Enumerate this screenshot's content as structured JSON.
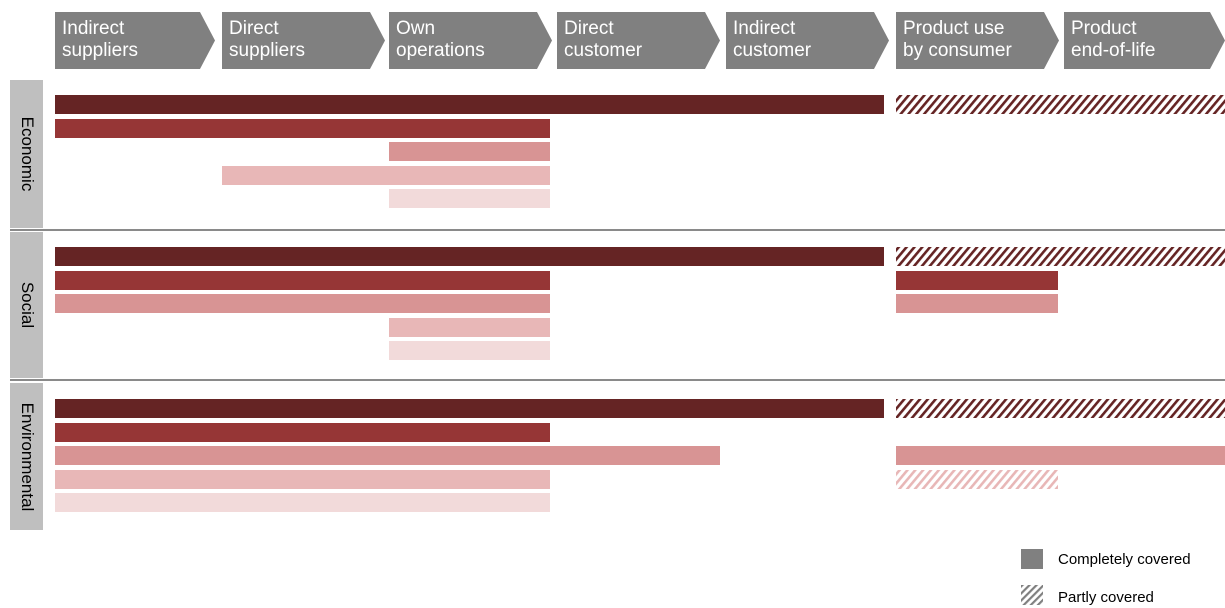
{
  "stages": [
    {
      "label": "Indirect\nsuppliers"
    },
    {
      "label": "Direct\nsuppliers"
    },
    {
      "label": "Own\noperations"
    },
    {
      "label": "Direct\ncustomer"
    },
    {
      "label": "Indirect\ncustomer"
    },
    {
      "label": "Product use\nby consumer"
    },
    {
      "label": "Product\nend-of-life"
    }
  ],
  "dimensions": [
    {
      "label": "Economic"
    },
    {
      "label": "Social"
    },
    {
      "label": "Environmental"
    }
  ],
  "coverage": {
    "stage_keys": [
      "indirect-suppliers",
      "direct-suppliers",
      "own-operations",
      "direct-customer",
      "indirect-customer",
      "product-use-by-consumer",
      "product-end-of-life"
    ],
    "rows": [
      {
        "dimension": "Economic",
        "level": 1,
        "from": 1,
        "to": 5,
        "coverage": "complete"
      },
      {
        "dimension": "Economic",
        "level": 1,
        "from": 6,
        "to": 7,
        "coverage": "partial"
      },
      {
        "dimension": "Economic",
        "level": 2,
        "from": 1,
        "to": 3,
        "coverage": "complete"
      },
      {
        "dimension": "Economic",
        "level": 3,
        "from": 3,
        "to": 3,
        "coverage": "complete"
      },
      {
        "dimension": "Economic",
        "level": 4,
        "from": 2,
        "to": 3,
        "coverage": "complete"
      },
      {
        "dimension": "Economic",
        "level": 5,
        "from": 3,
        "to": 3,
        "coverage": "complete"
      },
      {
        "dimension": "Social",
        "level": 1,
        "from": 1,
        "to": 5,
        "coverage": "complete"
      },
      {
        "dimension": "Social",
        "level": 1,
        "from": 6,
        "to": 7,
        "coverage": "partial"
      },
      {
        "dimension": "Social",
        "level": 2,
        "from": 1,
        "to": 3,
        "coverage": "complete"
      },
      {
        "dimension": "Social",
        "level": 2,
        "from": 6,
        "to": 6,
        "coverage": "complete"
      },
      {
        "dimension": "Social",
        "level": 3,
        "from": 1,
        "to": 3,
        "coverage": "complete"
      },
      {
        "dimension": "Social",
        "level": 3,
        "from": 6,
        "to": 6,
        "coverage": "complete"
      },
      {
        "dimension": "Social",
        "level": 4,
        "from": 3,
        "to": 3,
        "coverage": "complete"
      },
      {
        "dimension": "Social",
        "level": 5,
        "from": 3,
        "to": 3,
        "coverage": "complete"
      },
      {
        "dimension": "Environmental",
        "level": 1,
        "from": 1,
        "to": 5,
        "coverage": "complete"
      },
      {
        "dimension": "Environmental",
        "level": 1,
        "from": 6,
        "to": 7,
        "coverage": "partial"
      },
      {
        "dimension": "Environmental",
        "level": 2,
        "from": 1,
        "to": 3,
        "coverage": "complete"
      },
      {
        "dimension": "Environmental",
        "level": 3,
        "from": 1,
        "to": 4,
        "coverage": "complete"
      },
      {
        "dimension": "Environmental",
        "level": 3,
        "from": 6,
        "to": 7,
        "coverage": "complete"
      },
      {
        "dimension": "Environmental",
        "level": 4,
        "from": 1,
        "to": 3,
        "coverage": "complete"
      },
      {
        "dimension": "Environmental",
        "level": 4,
        "from": 6,
        "to": 6,
        "coverage": "partial"
      },
      {
        "dimension": "Environmental",
        "level": 5,
        "from": 1,
        "to": 3,
        "coverage": "complete"
      }
    ]
  },
  "level_colors": [
    "#652424",
    "#963636",
    "#d89494",
    "#e8b7b7",
    "#f2dada"
  ],
  "header_color": "#808080",
  "legend": [
    {
      "label": "Completely covered",
      "style": "solid"
    },
    {
      "label": "Partly covered",
      "style": "hatched"
    }
  ]
}
